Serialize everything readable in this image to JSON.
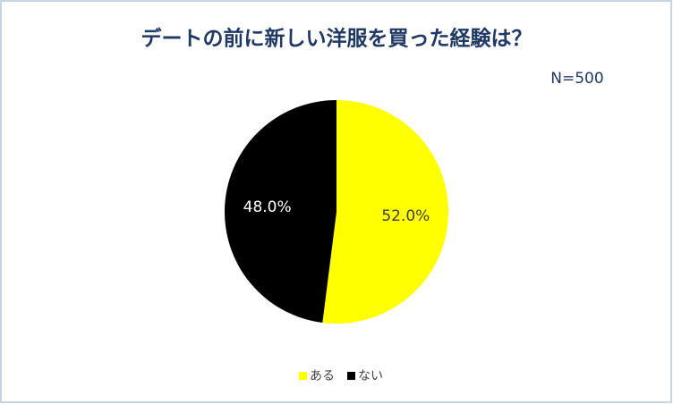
{
  "chart_data": {
    "type": "pie",
    "title": "デートの前に新しい洋服を買った経験は？",
    "annotation": "N=500",
    "categories": [
      "ある",
      "ない"
    ],
    "values": [
      52.0,
      48.0
    ],
    "value_labels": [
      "52.0%",
      "48.0%"
    ],
    "colors": [
      "#ffff00",
      "#000000"
    ],
    "legend": "bottom"
  }
}
